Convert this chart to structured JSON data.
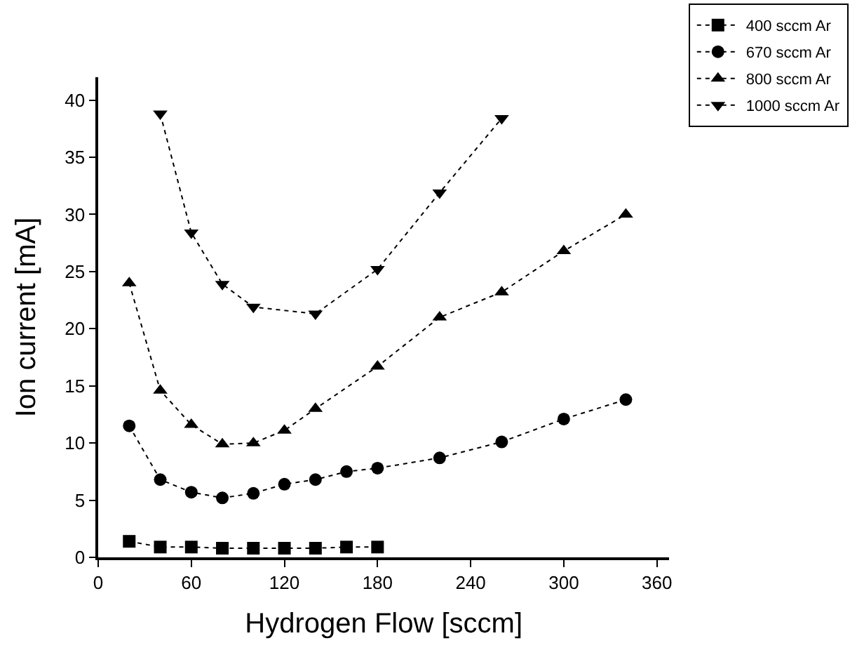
{
  "chart_data": {
    "type": "line",
    "xlabel": "Hydrogen Flow [sccm]",
    "ylabel": "Ion current [mA]",
    "xlim": [
      0,
      368
    ],
    "xticks": [
      0,
      60,
      120,
      180,
      240,
      300,
      360
    ],
    "ylim": [
      0,
      42
    ],
    "yticks": [
      0,
      5,
      10,
      15,
      20,
      25,
      30,
      35,
      40
    ],
    "legend": "top right",
    "line_style": "dotted",
    "series": [
      {
        "name": "400 sccm Ar",
        "color": "#000000",
        "marker": "square",
        "x": [
          20,
          40,
          60,
          80,
          100,
          120,
          140,
          160,
          180
        ],
        "values": [
          1.4,
          0.9,
          0.9,
          0.8,
          0.8,
          0.8,
          0.8,
          0.9,
          0.9
        ]
      },
      {
        "name": "670 sccm Ar",
        "color": "#000000",
        "marker": "circle",
        "x": [
          20,
          40,
          60,
          80,
          100,
          120,
          140,
          160,
          180,
          220,
          260,
          300,
          340
        ],
        "values": [
          11.5,
          6.8,
          5.7,
          5.2,
          5.6,
          6.4,
          6.8,
          7.5,
          7.8,
          8.7,
          10.1,
          12.1,
          13.8
        ]
      },
      {
        "name": "800 sccm Ar",
        "color": "#000000",
        "marker": "triangle",
        "x": [
          20,
          40,
          60,
          80,
          100,
          120,
          140,
          180,
          220,
          260,
          300,
          340
        ],
        "values": [
          24.0,
          14.6,
          11.6,
          9.9,
          10.0,
          11.1,
          13.0,
          16.7,
          21.0,
          23.2,
          26.8,
          30.0
        ]
      },
      {
        "name": "1000 sccm Ar",
        "color": "#000000",
        "marker": "triangle-down",
        "x": [
          40,
          60,
          80,
          100,
          140,
          180,
          220,
          260
        ],
        "values": [
          38.8,
          28.4,
          23.9,
          21.9,
          21.3,
          25.2,
          31.9,
          38.4
        ]
      }
    ]
  }
}
